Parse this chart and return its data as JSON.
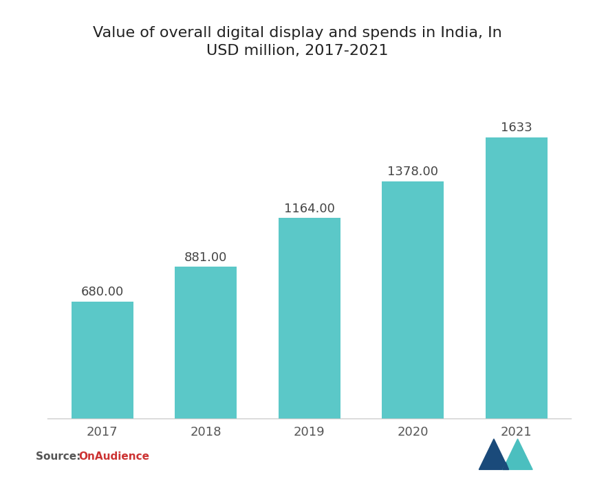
{
  "title": "Value of overall digital display and spends in India, In\nUSD million, 2017-2021",
  "categories": [
    "2017",
    "2018",
    "2019",
    "2020",
    "2021"
  ],
  "values": [
    680.0,
    881.0,
    1164.0,
    1378.0,
    1633
  ],
  "labels": [
    "680.00",
    "881.00",
    "1164.00",
    "1378.00",
    "1633"
  ],
  "bar_color": "#5BC8C8",
  "background_color": "#ffffff",
  "title_fontsize": 16,
  "label_fontsize": 13,
  "tick_fontsize": 13,
  "source_plain": "Source: ",
  "source_link": "OnAudience",
  "source_color_plain": "#555555",
  "source_color_link": "#cc3333",
  "ylim": [
    0,
    1900
  ],
  "logo_dark": "#1a4a7a",
  "logo_teal": "#4bbfbf"
}
